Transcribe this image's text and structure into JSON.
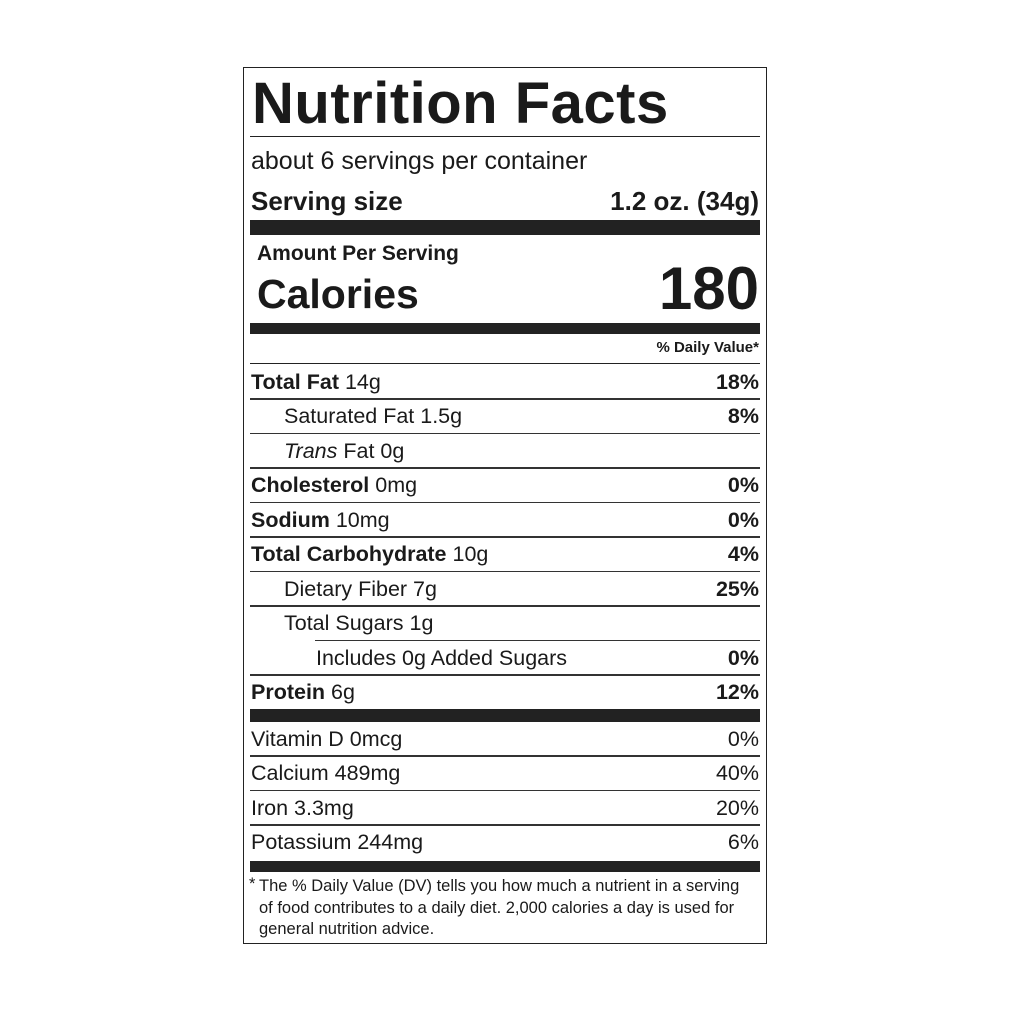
{
  "title": "Nutrition Facts",
  "servings_per_container": "about 6 servings per container",
  "serving_size": {
    "label": "Serving size",
    "value": "1.2 oz. (34g)"
  },
  "amount_per_serving": "Amount Per Serving",
  "calories": {
    "label": "Calories",
    "value": "180"
  },
  "daily_value_header": "% Daily Value*",
  "nutrients": [
    {
      "bold": "Total Fat",
      "amount": " 14g",
      "dv": "18%",
      "indent": 0
    },
    {
      "bold": "",
      "label": "Saturated Fat",
      "amount": " 1.5g",
      "dv": "8%",
      "indent": 1
    },
    {
      "bold": "",
      "italic": "Trans",
      "label": " Fat",
      "amount": " 0g",
      "dv": "",
      "indent": 1
    },
    {
      "bold": "Cholesterol",
      "amount": " 0mg",
      "dv": "0%",
      "indent": 0
    },
    {
      "bold": "Sodium",
      "amount": " 10mg",
      "dv": "0%",
      "indent": 0
    },
    {
      "bold": "Total Carbohydrate",
      "amount": " 10g",
      "dv": "4%",
      "indent": 0
    },
    {
      "bold": "",
      "label": "Dietary Fiber",
      "amount": " 7g",
      "dv": "25%",
      "indent": 1
    },
    {
      "bold": "",
      "label": "Total Sugars",
      "amount": " 1g",
      "dv": "",
      "indent": 1
    },
    {
      "bold": "",
      "label": "Includes 0g Added Sugars",
      "amount": "",
      "dv": "0%",
      "indent": 2
    },
    {
      "bold": "Protein",
      "amount": " 6g",
      "dv": "12%",
      "indent": 0
    }
  ],
  "vitamins": [
    {
      "label": "Vitamin D",
      "amount": " 0mcg",
      "dv": "0%"
    },
    {
      "label": "Calcium",
      "amount": " 489mg",
      "dv": "40%"
    },
    {
      "label": "Iron",
      "amount": " 3.3mg",
      "dv": "20%"
    },
    {
      "label": "Potassium",
      "amount": " 244mg",
      "dv": "6%"
    }
  ],
  "footnote": {
    "star": "*",
    "text": "The % Daily Value (DV) tells you how much a nutrient in a serving of food contributes to a daily diet. 2,000 calories a day is used for general nutrition advice."
  }
}
